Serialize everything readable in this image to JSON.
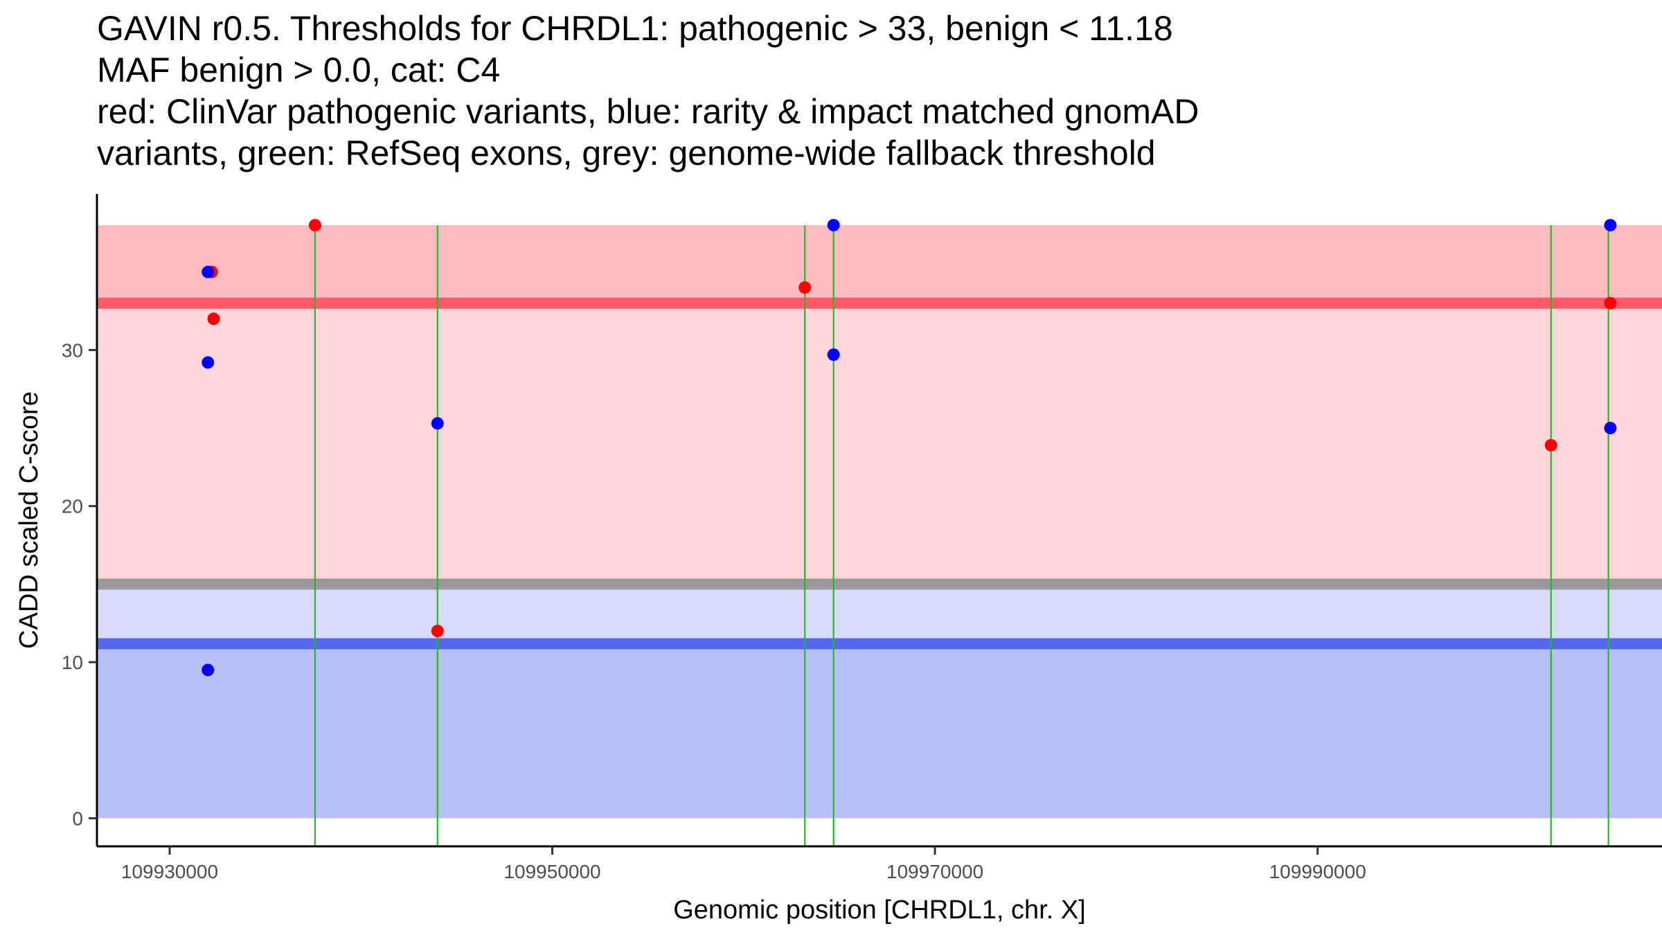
{
  "chart_data": {
    "type": "scatter",
    "title_lines": [
      "GAVIN r0.5. Thresholds for CHRDL1: pathogenic > 33, benign < 11.18",
      "MAF benign > 0.0, cat: C4",
      "red: ClinVar pathogenic variants, blue: rarity & impact matched gnomAD",
      "variants, green: RefSeq exons, grey: genome-wide fallback threshold"
    ],
    "xlabel": "Genomic position [CHRDL1, chr. X]",
    "ylabel": "CADD scaled C-score",
    "xlim": [
      109926200,
      110008000
    ],
    "ylim": [
      -1.8,
      40
    ],
    "x_ticks": [
      109930000,
      109950000,
      109970000,
      109990000
    ],
    "x_tick_labels": [
      "109930000",
      "109950000",
      "109970000",
      "109990000"
    ],
    "y_ticks": [
      0,
      10,
      20,
      30
    ],
    "y_tick_labels": [
      "0",
      "10",
      "20",
      "30"
    ],
    "regions": [
      {
        "name": "benign-region",
        "from": 0,
        "to": 11.18,
        "color": "#b9bff9"
      },
      {
        "name": "grey-to-benign-region",
        "from": 11.18,
        "to": 15,
        "color": "#d8dbfb"
      },
      {
        "name": "grey-to-pathogenic-region",
        "from": 15,
        "to": 33,
        "color": "#ffd6dc"
      },
      {
        "name": "pathogenic-region",
        "from": 33,
        "to": 38,
        "color": "#ffbbc1"
      }
    ],
    "threshold_lines": [
      {
        "name": "pathogenic-threshold",
        "y": 33,
        "color": "#ff5a68"
      },
      {
        "name": "fallback-threshold",
        "y": 15,
        "color": "#999999"
      },
      {
        "name": "benign-threshold",
        "y": 11.18,
        "color": "#5568ee"
      }
    ],
    "exon_lines": {
      "color": "#22bb22",
      "y_top": 38,
      "positions": [
        109937600,
        109944000,
        109963200,
        109964700,
        110002200,
        110005200
      ]
    },
    "series": [
      {
        "name": "ClinVar pathogenic variants",
        "color": "#ff0000",
        "points": [
          {
            "x": 109932200,
            "y": 35
          },
          {
            "x": 109932300,
            "y": 32
          },
          {
            "x": 109937600,
            "y": 38
          },
          {
            "x": 109944000,
            "y": 12
          },
          {
            "x": 109963200,
            "y": 34
          },
          {
            "x": 110002200,
            "y": 23.9
          },
          {
            "x": 110005300,
            "y": 33
          }
        ]
      },
      {
        "name": "rarity & impact matched gnomAD variants",
        "color": "#0000ff",
        "points": [
          {
            "x": 109932000,
            "y": 35
          },
          {
            "x": 109932000,
            "y": 29.2
          },
          {
            "x": 109932000,
            "y": 9.5
          },
          {
            "x": 109944000,
            "y": 25.3
          },
          {
            "x": 109964700,
            "y": 38
          },
          {
            "x": 109964700,
            "y": 29.7
          },
          {
            "x": 110005300,
            "y": 38
          },
          {
            "x": 110005300,
            "y": 25
          }
        ]
      }
    ]
  }
}
